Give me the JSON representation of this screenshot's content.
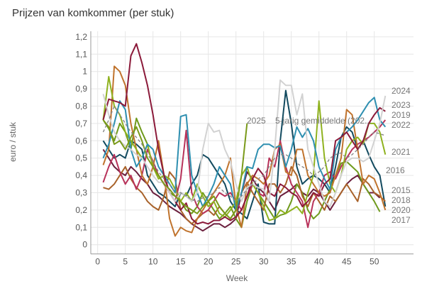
{
  "chart_data": {
    "type": "line",
    "title": "Prijzen van komkommer (per stuk)",
    "xlabel": "Week",
    "ylabel": "euro / stuk",
    "xlim": [
      -1,
      57
    ],
    "ylim": [
      -0.05,
      1.22
    ],
    "xticks": [
      "0",
      "5",
      "10",
      "15",
      "20",
      "25",
      "30",
      "35",
      "40",
      "45",
      "50"
    ],
    "xtick_values": [
      0,
      5,
      10,
      15,
      20,
      25,
      30,
      35,
      40,
      45,
      50
    ],
    "yticks": [
      "0",
      "0,1",
      "0,2",
      "0,3",
      "0,4",
      "0,5",
      "0,6",
      "0,7",
      "0,8",
      "0,9",
      "1",
      "1,1",
      "1,2"
    ],
    "ytick_values": [
      0,
      0.1,
      0.2,
      0.3,
      0.4,
      0.5,
      0.6,
      0.7,
      0.8,
      0.9,
      1.0,
      1.1,
      1.2
    ],
    "grid": true,
    "legend": "inline labels at line ends",
    "series": [
      {
        "name": "2015",
        "label": "2015",
        "color": "#6b1f3d",
        "dashed": false,
        "values": [
          0.55,
          0.5,
          0.45,
          0.42,
          0.4,
          0.45,
          0.42,
          0.38,
          0.35,
          0.3,
          0.28,
          0.25,
          0.22,
          0.2,
          0.18,
          0.15,
          0.12,
          0.1,
          0.08,
          0.1,
          0.12,
          0.12,
          0.1,
          0.12,
          0.15,
          0.3,
          0.42,
          0.38,
          0.33,
          0.3,
          0.25,
          0.2,
          0.28,
          0.3,
          0.32,
          0.35,
          0.3,
          0.28,
          0.32,
          0.3,
          0.25,
          0.2,
          0.25,
          0.3,
          0.35,
          0.38,
          0.4,
          0.35,
          0.3,
          0.3,
          0.27
        ]
      },
      {
        "name": "2016",
        "label": "2016",
        "color": "#124a5f",
        "dashed": false,
        "values": [
          0.6,
          0.55,
          0.5,
          0.52,
          0.5,
          0.6,
          0.58,
          0.55,
          0.4,
          0.35,
          0.3,
          0.28,
          0.25,
          0.22,
          0.3,
          0.28,
          0.35,
          0.4,
          0.52,
          0.5,
          0.45,
          0.4,
          0.35,
          0.25,
          0.2,
          0.18,
          0.15,
          0.25,
          0.35,
          0.13,
          0.12,
          0.12,
          0.6,
          0.89,
          0.7,
          0.45,
          0.35,
          0.38,
          0.4,
          0.38,
          0.35,
          0.3,
          0.45,
          0.62,
          0.68,
          0.65,
          0.55,
          0.6,
          0.52,
          0.45,
          0.4,
          0.22
        ]
      },
      {
        "name": "2017",
        "label": "2017",
        "color": "#6f9a1c",
        "dashed": false,
        "values": [
          0.72,
          0.67,
          0.6,
          0.7,
          0.65,
          0.55,
          0.73,
          0.65,
          0.58,
          0.45,
          0.4,
          0.35,
          0.3,
          0.28,
          0.25,
          0.2,
          0.18,
          0.22,
          0.3,
          0.25,
          0.2,
          0.15,
          0.18,
          0.22,
          0.15,
          0.1,
          0.25,
          0.35,
          0.3,
          0.25,
          0.2,
          0.15,
          0.17,
          0.18,
          0.25,
          0.35,
          0.3,
          0.2,
          0.15,
          0.18,
          0.25,
          0.32,
          0.4,
          0.47,
          0.48,
          0.45,
          0.42,
          0.35,
          0.3,
          0.25,
          0.19
        ]
      },
      {
        "name": "2018",
        "label": "2018",
        "color": "#a8622a",
        "dashed": false,
        "values": [
          0.33,
          0.32,
          0.35,
          0.4,
          0.45,
          0.38,
          0.33,
          0.3,
          0.25,
          0.22,
          0.2,
          0.28,
          0.42,
          0.38,
          0.2,
          0.15,
          0.12,
          0.15,
          0.18,
          0.2,
          0.17,
          0.22,
          0.18,
          0.15,
          0.2,
          0.3,
          0.36,
          0.3,
          0.25,
          0.2,
          0.35,
          0.35,
          0.3,
          0.35,
          0.45,
          0.4,
          0.28,
          0.22,
          0.3,
          0.25,
          0.2,
          0.28,
          0.25,
          0.3,
          0.35,
          0.3,
          0.25,
          0.38,
          0.35,
          0.3,
          0.28,
          0.25
        ]
      },
      {
        "name": "2019",
        "label": "2019",
        "color": "#b8325a",
        "dashed": false,
        "values": [
          0.36,
          0.45,
          0.52,
          0.42,
          0.35,
          0.4,
          0.32,
          0.4,
          0.55,
          0.48,
          0.4,
          0.35,
          0.3,
          0.25,
          0.38,
          0.66,
          0.3,
          0.22,
          0.18,
          0.2,
          0.25,
          0.3,
          0.28,
          0.3,
          0.25,
          0.2,
          0.28,
          0.35,
          0.3,
          0.28,
          0.5,
          0.45,
          0.6,
          0.45,
          0.35,
          0.3,
          0.25,
          0.1,
          0.25,
          0.3,
          0.4,
          0.42,
          0.38,
          0.45,
          0.5,
          0.55,
          0.58,
          0.6,
          0.62,
          0.65,
          0.68,
          0.72
        ]
      },
      {
        "name": "2020",
        "label": "2020",
        "color": "#c0732d",
        "dashed": false,
        "values": [
          0.46,
          0.55,
          1.03,
          1.0,
          0.92,
          0.7,
          0.55,
          0.4,
          0.35,
          0.45,
          0.6,
          0.4,
          0.15,
          0.05,
          0.1,
          0.08,
          0.07,
          0.15,
          0.2,
          0.25,
          0.3,
          0.35,
          0.4,
          0.5,
          0.22,
          0.1,
          0.35,
          0.4,
          0.38,
          0.35,
          0.4,
          0.55,
          0.58,
          0.42,
          0.4,
          0.55,
          0.55,
          0.4,
          0.35,
          0.3,
          0.28,
          0.3,
          0.4,
          0.5,
          0.78,
          0.75,
          0.55,
          0.35,
          0.4,
          0.38,
          0.3,
          0.2
        ]
      },
      {
        "name": "2021",
        "label": "2021",
        "color": "#8fb21f",
        "dashed": false,
        "values": [
          0.72,
          0.97,
          0.8,
          0.75,
          0.65,
          0.6,
          0.55,
          0.5,
          0.58,
          0.45,
          0.38,
          0.4,
          0.38,
          0.32,
          0.25,
          0.3,
          0.25,
          0.35,
          0.28,
          0.22,
          0.25,
          0.18,
          0.16,
          0.2,
          0.25,
          0.4,
          0.45,
          0.35,
          0.3,
          0.22,
          0.14,
          0.15,
          0.2,
          0.18,
          0.2,
          0.22,
          0.18,
          0.3,
          0.4,
          0.83,
          0.5,
          0.35,
          0.3,
          0.4,
          0.55,
          0.6,
          0.62,
          0.58,
          0.7,
          0.7,
          0.65,
          0.52
        ]
      },
      {
        "name": "2022",
        "label": "2022",
        "color": "#2e8fb0",
        "dashed": false,
        "values": [
          0.5,
          0.58,
          0.7,
          0.83,
          0.78,
          0.55,
          0.45,
          0.5,
          0.58,
          0.55,
          0.45,
          0.4,
          0.35,
          0.3,
          0.74,
          0.75,
          0.4,
          0.3,
          0.22,
          0.28,
          0.35,
          0.45,
          0.4,
          0.35,
          0.2,
          0.3,
          0.45,
          0.44,
          0.55,
          0.58,
          0.58,
          0.56,
          0.57,
          0.45,
          0.55,
          0.68,
          0.62,
          0.67,
          0.6,
          0.45,
          0.38,
          0.32,
          0.55,
          0.62,
          0.65,
          0.68,
          0.72,
          0.77,
          0.82,
          0.85,
          0.72,
          0.68
        ]
      },
      {
        "name": "2023",
        "label": "2023",
        "color": "#8b1a3a",
        "dashed": false,
        "values": [
          0.72,
          0.84,
          0.83,
          0.82,
          0.8,
          1.09,
          1.16,
          1.05,
          0.92,
          0.75,
          0.55,
          0.4,
          0.3,
          0.25,
          0.2,
          0.24,
          0.15,
          0.12,
          0.13,
          0.12,
          0.14,
          0.14,
          0.16,
          0.14,
          0.16,
          0.2,
          0.28,
          0.38,
          0.44,
          0.4,
          0.3,
          0.28,
          0.35,
          0.33,
          0.3,
          0.28,
          0.22,
          0.25,
          0.3,
          0.28,
          0.35,
          0.38,
          0.6,
          0.62,
          0.65,
          0.6,
          0.55,
          0.6,
          0.7,
          0.75,
          0.79,
          0.77
        ]
      },
      {
        "name": "2024",
        "label": "2024",
        "color": "#d2d2d2",
        "dashed": false,
        "values": [
          0.87,
          0.75,
          0.65,
          0.6,
          0.57,
          0.55,
          0.52,
          0.5,
          0.45,
          0.4,
          0.36,
          0.36,
          0.3,
          0.25,
          0.3,
          0.28,
          0.25,
          0.3,
          0.55,
          0.7,
          0.65,
          0.66,
          0.55,
          0.48,
          0.35,
          0.25,
          0.33,
          0.35,
          0.33,
          0.32,
          0.25,
          0.55,
          0.95,
          0.92,
          0.92,
          0.75,
          0.87,
          0.55,
          0.45,
          0.35,
          0.25,
          0.22,
          0.3,
          0.4,
          0.48,
          0.5,
          0.5,
          0.48,
          0.5,
          0.6,
          0.7,
          0.86
        ]
      },
      {
        "name": "2025",
        "label": "2025",
        "color": "#7a9a1a",
        "dashed": false,
        "values": [
          0.72,
          0.68,
          0.58,
          0.6,
          0.55,
          0.62,
          0.68,
          0.6,
          0.5,
          0.45,
          0.4,
          0.35,
          0.32,
          0.28,
          0.25,
          0.22,
          0.2,
          0.18,
          0.22,
          0.25,
          0.28,
          0.22,
          0.18,
          0.15,
          0.2,
          0.4,
          0.7
        ]
      },
      {
        "name": "5-jarig gemiddelde",
        "label": "5-jarig gemiddelde (202...",
        "color": "#888888",
        "dashed": true,
        "values": [
          0.65,
          0.72,
          0.8,
          0.75,
          0.7,
          0.65,
          0.62,
          0.58,
          0.52,
          0.48,
          0.42,
          0.38,
          0.35,
          0.3,
          0.3,
          0.28,
          0.26,
          0.25,
          0.27,
          0.28,
          0.3,
          0.33,
          0.3,
          0.28,
          0.25,
          0.28,
          0.32,
          0.35,
          0.38,
          0.4,
          0.45,
          0.5,
          0.52,
          0.52,
          0.5,
          0.47,
          0.45,
          0.43,
          0.4,
          0.42,
          0.45,
          0.5,
          0.52,
          0.53,
          0.5,
          0.52,
          0.55,
          0.58,
          0.62,
          0.65,
          0.64,
          0.63
        ]
      }
    ]
  }
}
